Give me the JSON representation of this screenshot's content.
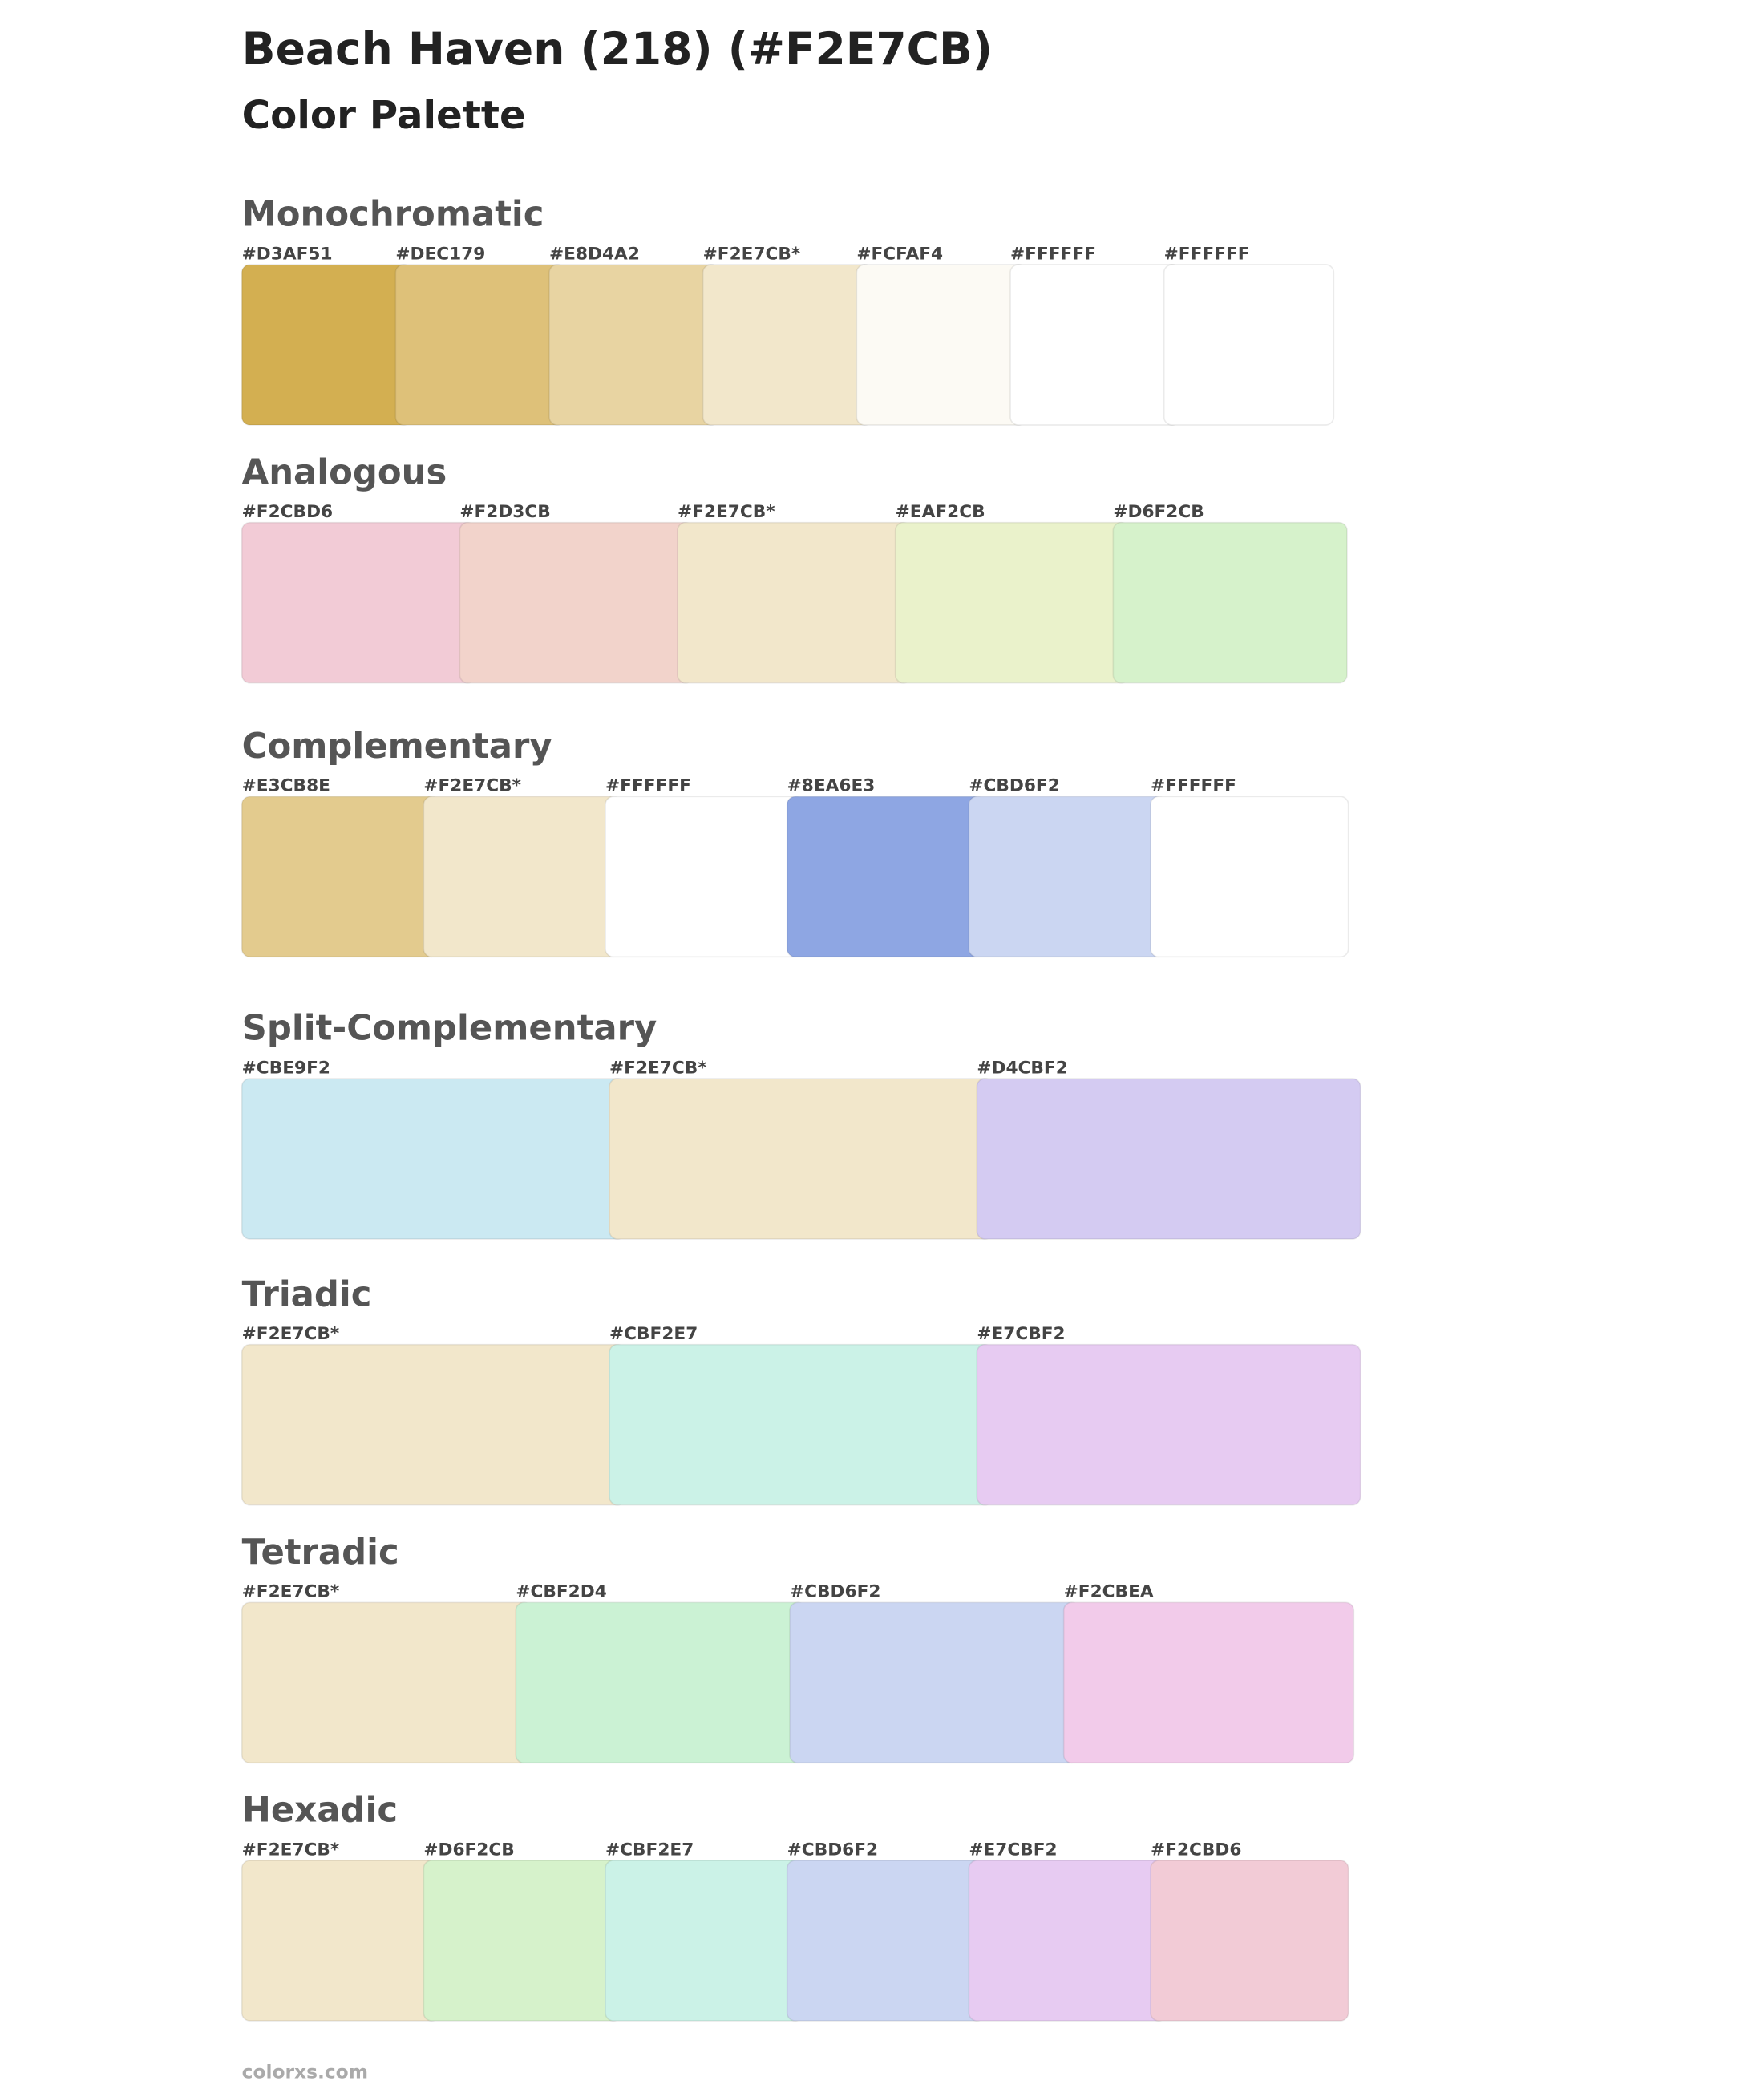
{
  "header": {
    "title": "Beach Haven (218) (#F2E7CB)",
    "subtitle": "Color Palette"
  },
  "sections": [
    {
      "name": "Monochromatic",
      "swatches": [
        {
          "label": "#D3AF51",
          "color": "#D3AF51"
        },
        {
          "label": "#DEC179",
          "color": "#DEC179"
        },
        {
          "label": "#E8D4A2",
          "color": "#E8D4A2"
        },
        {
          "label": "#F2E7CB*",
          "color": "#F2E7CB"
        },
        {
          "label": "#FCFAF4",
          "color": "#FCFAF4"
        },
        {
          "label": "#FFFFFF",
          "color": "#FFFFFF"
        },
        {
          "label": "#FFFFFF",
          "color": "#FFFFFF"
        }
      ]
    },
    {
      "name": "Analogous",
      "swatches": [
        {
          "label": "#F2CBD6",
          "color": "#F2CBD6"
        },
        {
          "label": "#F2D3CB",
          "color": "#F2D3CB"
        },
        {
          "label": "#F2E7CB*",
          "color": "#F2E7CB"
        },
        {
          "label": "#EAF2CB",
          "color": "#EAF2CB"
        },
        {
          "label": "#D6F2CB",
          "color": "#D6F2CB"
        }
      ]
    },
    {
      "name": "Complementary",
      "swatches": [
        {
          "label": "#E3CB8E",
          "color": "#E3CB8E"
        },
        {
          "label": "#F2E7CB*",
          "color": "#F2E7CB"
        },
        {
          "label": "#FFFFFF",
          "color": "#FFFFFF"
        },
        {
          "label": "#8EA6E3",
          "color": "#8EA6E3"
        },
        {
          "label": "#CBD6F2",
          "color": "#CBD6F2"
        },
        {
          "label": "#FFFFFF",
          "color": "#FFFFFF"
        }
      ]
    },
    {
      "name": "Split-Complementary",
      "swatches": [
        {
          "label": "#CBE9F2",
          "color": "#CBE9F2"
        },
        {
          "label": "#F2E7CB*",
          "color": "#F2E7CB"
        },
        {
          "label": "#D4CBF2",
          "color": "#D4CBF2"
        }
      ]
    },
    {
      "name": "Triadic",
      "swatches": [
        {
          "label": "#F2E7CB*",
          "color": "#F2E7CB"
        },
        {
          "label": "#CBF2E7",
          "color": "#CBF2E7"
        },
        {
          "label": "#E7CBF2",
          "color": "#E7CBF2"
        }
      ]
    },
    {
      "name": "Tetradic",
      "swatches": [
        {
          "label": "#F2E7CB*",
          "color": "#F2E7CB"
        },
        {
          "label": "#CBF2D4",
          "color": "#CBF2D4"
        },
        {
          "label": "#CBD6F2",
          "color": "#CBD6F2"
        },
        {
          "label": "#F2CBEA",
          "color": "#F2CBEA"
        }
      ]
    },
    {
      "name": "Hexadic",
      "swatches": [
        {
          "label": "#F2E7CB*",
          "color": "#F2E7CB"
        },
        {
          "label": "#D6F2CB",
          "color": "#D6F2CB"
        },
        {
          "label": "#CBF2E7",
          "color": "#CBF2E7"
        },
        {
          "label": "#CBD6F2",
          "color": "#CBD6F2"
        },
        {
          "label": "#E7CBF2",
          "color": "#E7CBF2"
        },
        {
          "label": "#F2CBD6",
          "color": "#F2CBD6"
        }
      ]
    }
  ],
  "footer": "colorxs.com"
}
